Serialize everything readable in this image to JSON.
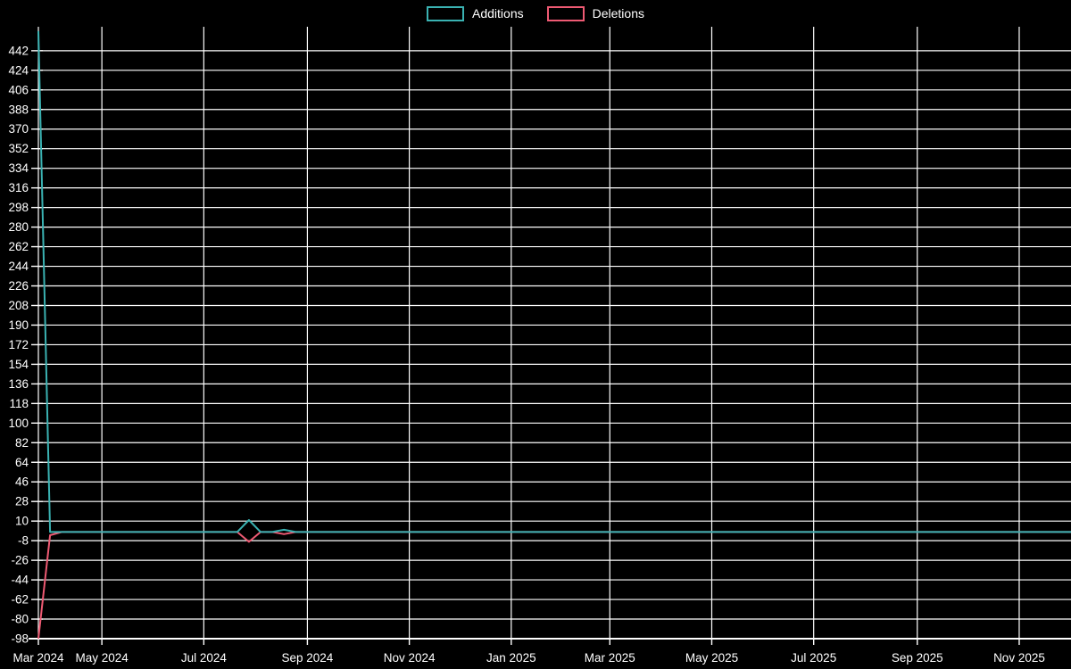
{
  "chart_data": {
    "type": "line",
    "title": "",
    "background_color": "#000000",
    "grid_color": "#ffffff",
    "axis_color": "#ffffff",
    "text_color": "#ffffff",
    "legend_position": "top-center",
    "series": [
      {
        "name": "Additions",
        "color": "#3ab2b2",
        "points": [
          [
            "2024-03-24",
            460
          ],
          [
            "2024-03-31",
            0
          ],
          [
            "2024-07-21",
            0
          ],
          [
            "2024-07-28",
            11
          ],
          [
            "2024-08-04",
            0
          ],
          [
            "2024-08-11",
            0
          ],
          [
            "2024-08-18",
            2
          ],
          [
            "2024-08-25",
            0
          ],
          [
            "2025-12-02",
            0
          ]
        ]
      },
      {
        "name": "Deletions",
        "color": "#ee5a73",
        "points": [
          [
            "2024-03-24",
            -98
          ],
          [
            "2024-03-31",
            -3
          ],
          [
            "2024-04-07",
            0
          ],
          [
            "2024-07-21",
            0
          ],
          [
            "2024-07-28",
            -9
          ],
          [
            "2024-08-04",
            0
          ],
          [
            "2024-08-11",
            0
          ],
          [
            "2024-08-18",
            -2
          ],
          [
            "2024-08-25",
            0
          ],
          [
            "2025-12-02",
            0
          ]
        ]
      }
    ],
    "x_axis": {
      "type": "time",
      "start_date": "2024-03-24",
      "end_date": "2025-12-02",
      "ticks": [
        {
          "label": "Mar 2024",
          "date": "2024-03-01"
        },
        {
          "label": "May 2024",
          "date": "2024-05-01"
        },
        {
          "label": "Jul 2024",
          "date": "2024-07-01"
        },
        {
          "label": "Sep 2024",
          "date": "2024-09-01"
        },
        {
          "label": "Nov 2024",
          "date": "2024-11-01"
        },
        {
          "label": "Jan 2025",
          "date": "2025-01-01"
        },
        {
          "label": "Mar 2025",
          "date": "2025-03-01"
        },
        {
          "label": "May 2025",
          "date": "2025-05-01"
        },
        {
          "label": "Jul 2025",
          "date": "2025-07-01"
        },
        {
          "label": "Sep 2025",
          "date": "2025-09-01"
        },
        {
          "label": "Nov 2025",
          "date": "2025-11-01"
        }
      ]
    },
    "y_axis": {
      "min": -98,
      "max": 464,
      "tick_step": 18,
      "tick_labels": [
        "442",
        "424",
        "406",
        "388",
        "370",
        "352",
        "334",
        "316",
        "298",
        "280",
        "262",
        "244",
        "226",
        "208",
        "190",
        "172",
        "154",
        "136",
        "118",
        "100",
        "82",
        "64",
        "46",
        "28",
        "10",
        "-8",
        "-26",
        "-44",
        "-62",
        "-80",
        "-98"
      ]
    },
    "grid": "on"
  }
}
